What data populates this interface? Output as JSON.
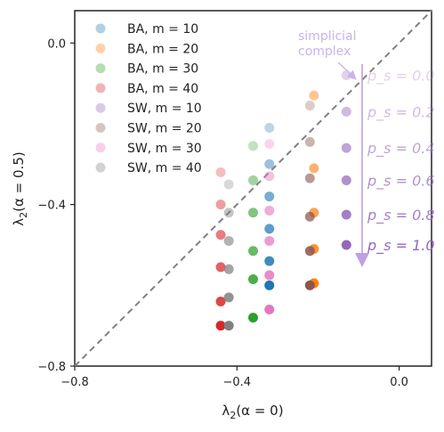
{
  "chart_data": {
    "type": "scatter",
    "xlabel": "λ₂(α = 0)",
    "ylabel": "λ₂(α = 0.5)",
    "xlim": [
      -0.8,
      0.08
    ],
    "ylim": [
      -0.8,
      0.08
    ],
    "xticks": [
      {
        "v": -0.8,
        "label": "−0.8"
      },
      {
        "v": -0.4,
        "label": "−0.4"
      },
      {
        "v": 0.0,
        "label": "0.0"
      }
    ],
    "yticks": [
      {
        "v": 0.0,
        "label": "0.0"
      },
      {
        "v": -0.4,
        "label": "−0.4"
      },
      {
        "v": -0.8,
        "label": "−0.8"
      }
    ],
    "grid": false,
    "legend": "top-left",
    "diagonal": {
      "style": "dashed",
      "color": "#808080"
    },
    "series": [
      {
        "name": "BA, m = 10",
        "color": "#1f77b4",
        "points": [
          [
            -0.32,
            -0.21
          ],
          [
            -0.32,
            -0.3
          ],
          [
            -0.32,
            -0.38
          ],
          [
            -0.32,
            -0.46
          ],
          [
            -0.32,
            -0.54
          ],
          [
            -0.32,
            -0.6
          ]
        ]
      },
      {
        "name": "BA, m = 20",
        "color": "#ff7f0e",
        "points": [
          [
            -0.21,
            -0.13
          ],
          [
            -0.21,
            -0.31
          ],
          [
            -0.21,
            -0.42
          ],
          [
            -0.21,
            -0.51
          ],
          [
            -0.21,
            -0.595
          ]
        ]
      },
      {
        "name": "BA, m = 30",
        "color": "#2ca02c",
        "points": [
          [
            -0.36,
            -0.255
          ],
          [
            -0.36,
            -0.34
          ],
          [
            -0.36,
            -0.42
          ],
          [
            -0.36,
            -0.515
          ],
          [
            -0.36,
            -0.585
          ],
          [
            -0.36,
            -0.68
          ]
        ]
      },
      {
        "name": "BA, m = 40",
        "color": "#d62728",
        "points": [
          [
            -0.44,
            -0.32
          ],
          [
            -0.44,
            -0.4
          ],
          [
            -0.44,
            -0.475
          ],
          [
            -0.44,
            -0.555
          ],
          [
            -0.44,
            -0.64
          ],
          [
            -0.44,
            -0.7
          ]
        ]
      },
      {
        "name": "SW, m = 10",
        "color": "#9467bd",
        "points": [
          [
            -0.13,
            -0.08
          ],
          [
            -0.13,
            -0.17
          ],
          [
            -0.13,
            -0.26
          ],
          [
            -0.13,
            -0.34
          ],
          [
            -0.13,
            -0.425
          ],
          [
            -0.13,
            -0.5
          ]
        ]
      },
      {
        "name": "SW, m = 20",
        "color": "#8c564b",
        "points": [
          [
            -0.22,
            -0.155
          ],
          [
            -0.22,
            -0.245
          ],
          [
            -0.22,
            -0.335
          ],
          [
            -0.22,
            -0.43
          ],
          [
            -0.22,
            -0.515
          ],
          [
            -0.22,
            -0.6
          ]
        ]
      },
      {
        "name": "SW, m = 30",
        "color": "#e377c2",
        "points": [
          [
            -0.32,
            -0.25
          ],
          [
            -0.32,
            -0.33
          ],
          [
            -0.32,
            -0.415
          ],
          [
            -0.32,
            -0.49
          ],
          [
            -0.32,
            -0.575
          ],
          [
            -0.32,
            -0.66
          ]
        ]
      },
      {
        "name": "SW, m = 40",
        "color": "#7f7f7f",
        "points": [
          [
            -0.42,
            -0.35
          ],
          [
            -0.42,
            -0.42
          ],
          [
            -0.42,
            -0.49
          ],
          [
            -0.42,
            -0.56
          ],
          [
            -0.42,
            -0.63
          ],
          [
            -0.42,
            -0.7
          ]
        ]
      }
    ],
    "legend_markers": [
      "BA, m = 10",
      "BA, m = 20",
      "BA, m = 30",
      "BA, m = 40",
      "SW, m = 10",
      "SW, m = 20",
      "SW, m = 30",
      "SW, m = 40"
    ],
    "annotation": {
      "text_line1": "simplicial",
      "text_line2": "complex",
      "color": "#c9b4ec"
    },
    "ps_arrow_color": "#bfa0e0",
    "ps_scale": {
      "base_color": "#9467bd",
      "items": [
        {
          "label": "p_s = 0.0",
          "value": 0.0,
          "y": -0.08
        },
        {
          "label": "p_s = 0.2",
          "value": 0.2,
          "y": -0.17
        },
        {
          "label": "p_s = 0.4",
          "value": 0.4,
          "y": -0.26
        },
        {
          "label": "p_s = 0.6",
          "value": 0.6,
          "y": -0.34
        },
        {
          "label": "p_s = 0.8",
          "value": 0.8,
          "y": -0.425
        },
        {
          "label": "p_s = 1.0",
          "value": 1.0,
          "y": -0.5
        }
      ]
    }
  }
}
